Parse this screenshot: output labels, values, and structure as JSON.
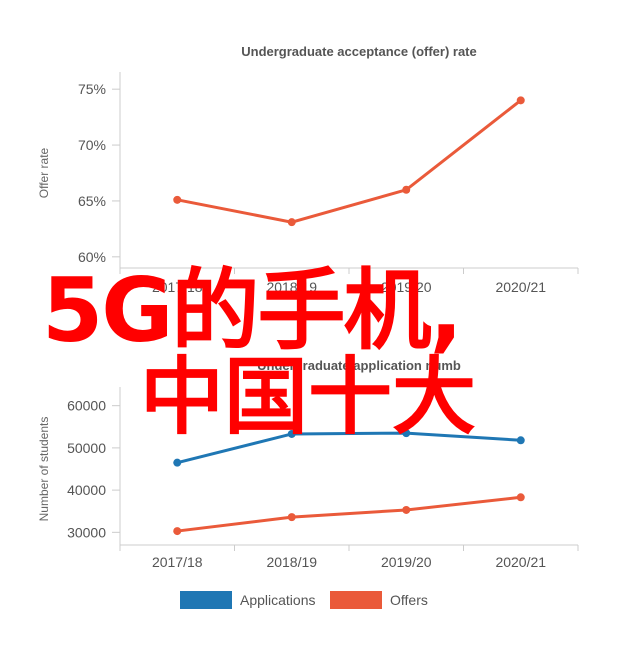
{
  "chart_data": [
    {
      "type": "line",
      "title": "Undergraduate acceptance (offer) rate",
      "ylabel": "Offer rate",
      "xlabel": "",
      "categories": [
        "2017/18",
        "2018/19",
        "2019/20",
        "2020/21"
      ],
      "ylim": [
        59,
        76
      ],
      "yticks": [
        "60%",
        "65%",
        "70%",
        "75%"
      ],
      "yticks_values": [
        60,
        65,
        70,
        75
      ],
      "series": [
        {
          "values": [
            65.1,
            63.1,
            66.0,
            74.0
          ],
          "color": "#ea5a3a"
        }
      ]
    },
    {
      "type": "line",
      "title": "Undergraduate application numb",
      "ylabel": "Number of students",
      "xlabel": "",
      "categories": [
        "2017/18",
        "2018/19",
        "2019/20",
        "2020/21"
      ],
      "ylim": [
        27000,
        63000
      ],
      "yticks": [
        "30000",
        "40000",
        "50000",
        "60000"
      ],
      "yticks_values": [
        30000,
        40000,
        50000,
        60000
      ],
      "legend_position": "bottom",
      "series": [
        {
          "name": "Applications",
          "values": [
            46500,
            53300,
            53500,
            51800
          ],
          "color": "#1f77b4"
        },
        {
          "name": "Offers",
          "values": [
            30300,
            33600,
            35300,
            38300
          ],
          "color": "#ea5a3a"
        }
      ]
    }
  ],
  "overlay": {
    "line1": "5G的手机,",
    "line2": "中国十大"
  }
}
